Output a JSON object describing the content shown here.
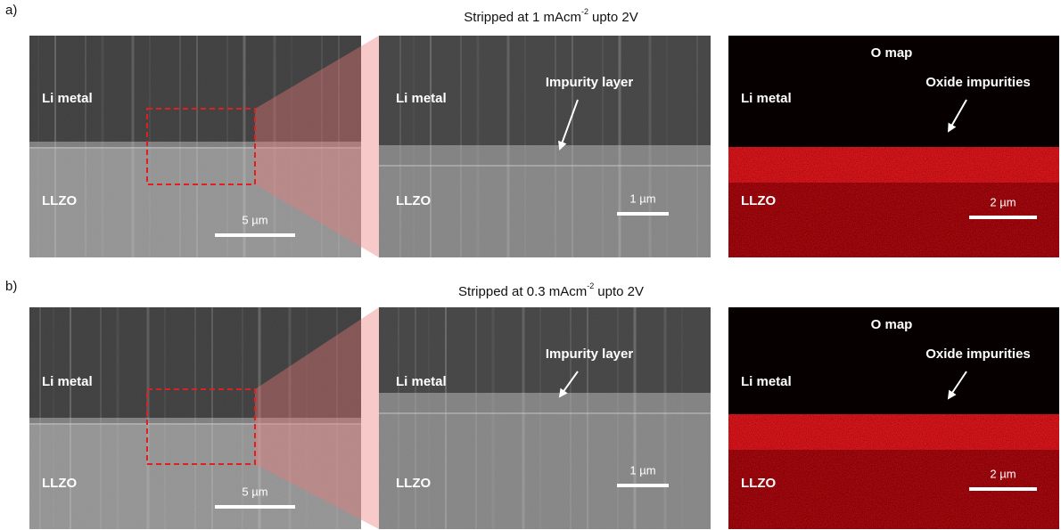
{
  "panels": [
    {
      "label": "a)",
      "title": {
        "before": "Stripped at 1 mAcm",
        "sup": "-2",
        "after": "upto 2V"
      },
      "images": [
        {
          "labels": [
            "Li metal",
            "LLZO"
          ],
          "scale_bar": "5 µm"
        },
        {
          "labels": [
            "Li metal",
            "LLZO"
          ],
          "annotation": "Impurity layer",
          "scale_bar": "1 µm"
        },
        {
          "title": "O map",
          "labels": [
            "Li metal",
            "LLZO"
          ],
          "annotation": "Oxide impurities",
          "scale_bar": "2 µm"
        }
      ]
    },
    {
      "label": "b)",
      "title": {
        "before": "Stripped at 0.3 mAcm",
        "sup": "-2",
        "after": "upto 2V"
      },
      "images": [
        {
          "labels": [
            "Li metal",
            "LLZO"
          ],
          "scale_bar": "5 µm"
        },
        {
          "labels": [
            "Li metal",
            "LLZO"
          ],
          "annotation": "Impurity layer",
          "scale_bar": "1 µm"
        },
        {
          "title": "O map",
          "labels": [
            "Li metal",
            "LLZO"
          ],
          "annotation": "Oxide impurities",
          "scale_bar": "2 µm"
        }
      ]
    }
  ]
}
